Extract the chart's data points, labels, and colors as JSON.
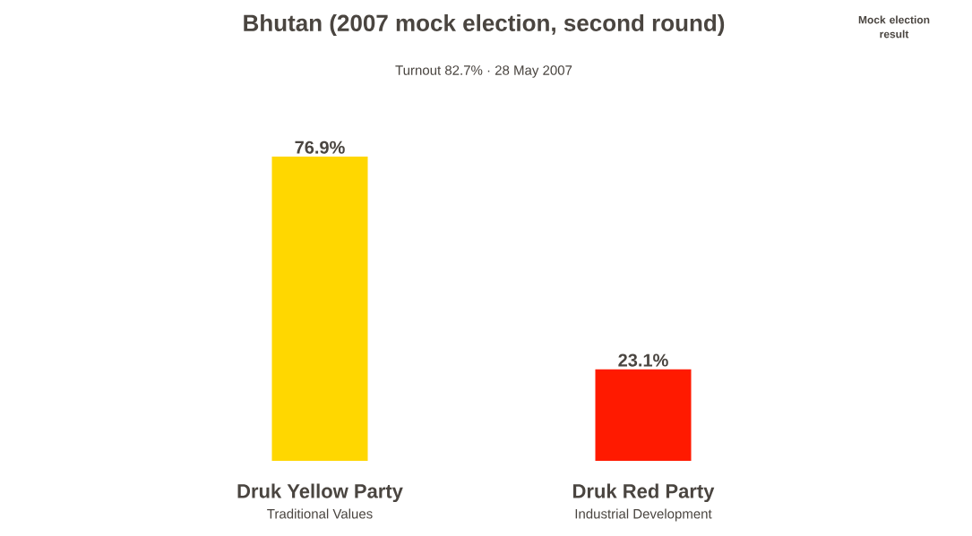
{
  "chart_data": {
    "type": "bar",
    "title": "Bhutan (2007 mock election, second round)",
    "subtitle": "Turnout 82.7% · 28 May 2007",
    "categories": [
      "Druk Yellow Party",
      "Druk Red Party"
    ],
    "values": [
      76.9,
      23.1
    ],
    "colors": [
      "#ffd700",
      "#ff1a00"
    ],
    "value_labels": [
      "76.9%",
      "23.1%"
    ],
    "annotations": [
      "Traditional Values",
      "Industrial Development",
      "Mock election result"
    ]
  }
}
